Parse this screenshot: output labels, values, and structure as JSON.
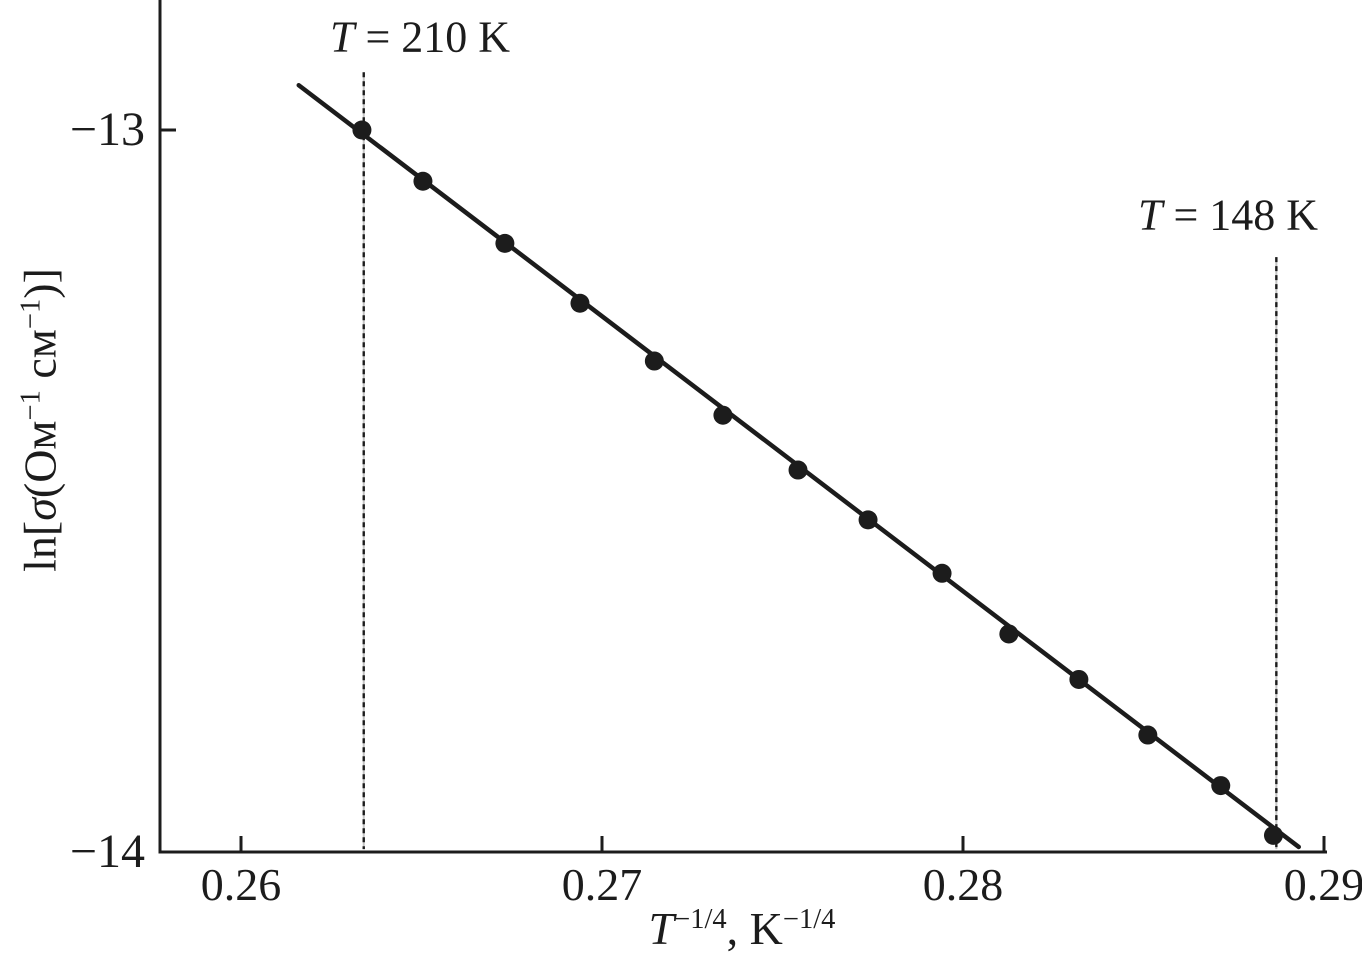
{
  "figure": {
    "background": "#ffffff",
    "ink_color": "#1c1c1c",
    "dash_underlay_color": "#c4c4c4"
  },
  "chart_data": {
    "type": "scatter",
    "title": "",
    "grid": false,
    "legend": null,
    "xlabel_text": "T^(-1/4), K^(-1/4)",
    "xlabel_parts": [
      {
        "t": "T",
        "i": 1
      },
      {
        "t": "−1/4",
        "sup": 1
      },
      {
        "t": ", K"
      },
      {
        "t": "−1/4",
        "sup": 1
      }
    ],
    "ylabel_text": "ln[σ(Ом^(-1) см^(-1))]",
    "ylabel_parts": [
      {
        "t": "ln["
      },
      {
        "t": "σ",
        "i": 1
      },
      {
        "t": "(Ом"
      },
      {
        "t": "−1",
        "sup": 1
      },
      {
        "t": " см"
      },
      {
        "t": "−1",
        "sup": 1
      },
      {
        "t": ")]"
      }
    ],
    "xlim": [
      0.2578,
      0.2901
    ],
    "ylim": [
      -14.0,
      -12.82
    ],
    "x_ticks": [
      {
        "value": 0.26,
        "label": "0.26"
      },
      {
        "value": 0.27,
        "label": "0.27"
      },
      {
        "value": 0.28,
        "label": "0.28"
      },
      {
        "value": 0.29,
        "label": "0.29"
      }
    ],
    "y_ticks": [
      {
        "value": -13,
        "label": "−13"
      },
      {
        "value": -14,
        "label": "−14"
      }
    ],
    "series": [
      {
        "name": "conductivity-data",
        "marker": "filled-circle",
        "points": [
          {
            "x": 0.26335,
            "y": -13.0
          },
          {
            "x": 0.26504,
            "y": -13.071
          },
          {
            "x": 0.26731,
            "y": -13.157
          },
          {
            "x": 0.26939,
            "y": -13.24
          },
          {
            "x": 0.27145,
            "y": -13.32
          },
          {
            "x": 0.27335,
            "y": -13.395
          },
          {
            "x": 0.27543,
            "y": -13.471
          },
          {
            "x": 0.27737,
            "y": -13.54
          },
          {
            "x": 0.27942,
            "y": -13.614
          },
          {
            "x": 0.28127,
            "y": -13.698
          },
          {
            "x": 0.28321,
            "y": -13.761
          },
          {
            "x": 0.28512,
            "y": -13.838
          },
          {
            "x": 0.28714,
            "y": -13.908
          },
          {
            "x": 0.2886,
            "y": -13.977
          }
        ]
      }
    ],
    "fit_line": {
      "x1": 0.2616,
      "y1": -12.938,
      "x2": 0.2893,
      "y2": -13.993
    },
    "annotations": [
      {
        "label_text": "T = 210 K",
        "label_parts": [
          {
            "t": "T",
            "i": 1
          },
          {
            "t": " = 210 K"
          }
        ],
        "x": 0.2634,
        "y_top": -12.92,
        "y_bottom": -13.996
      },
      {
        "label_text": "T = 148 K",
        "label_parts": [
          {
            "t": "T",
            "i": 1
          },
          {
            "t": " = 148 K"
          }
        ],
        "x": 0.28868,
        "y_top": -13.176,
        "y_bottom": -13.996
      }
    ]
  }
}
